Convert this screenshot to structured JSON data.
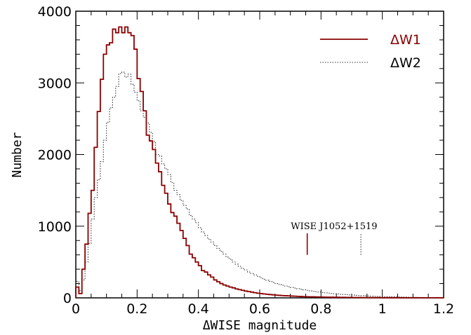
{
  "chart_data": {
    "type": "histogram",
    "xlabel": "ΔWISE magnitude",
    "ylabel": "Number",
    "xlim": [
      0,
      1.2
    ],
    "ylim": [
      0,
      4000
    ],
    "bin_width": 0.01,
    "x_ticks": [
      0,
      0.2,
      0.4,
      0.6,
      0.8,
      1,
      1.2
    ],
    "x_tick_labels": [
      "0",
      "0.2",
      "0.4",
      "0.6",
      "0.8",
      "1",
      "1.2"
    ],
    "y_ticks": [
      0,
      1000,
      2000,
      3000,
      4000
    ],
    "y_tick_labels": [
      "0",
      "1000",
      "2000",
      "3000",
      "4000"
    ],
    "legend_position": "top-right",
    "series": [
      {
        "name": "ΔW1",
        "color": "#8b0000",
        "style": "solid",
        "bin_start": 0.0,
        "values": [
          150,
          60,
          400,
          750,
          1180,
          1500,
          2100,
          2600,
          3050,
          3400,
          3530,
          3560,
          3750,
          3700,
          3780,
          3700,
          3780,
          3700,
          3660,
          3470,
          3060,
          2880,
          2610,
          2270,
          2190,
          2070,
          1880,
          1760,
          1570,
          1460,
          1310,
          1190,
          1140,
          1040,
          940,
          830,
          730,
          610,
          560,
          500,
          450,
          380,
          360,
          320,
          290,
          250,
          225,
          200,
          180,
          165,
          150,
          140,
          125,
          115,
          105,
          95,
          88,
          80,
          72,
          65,
          60,
          55,
          50,
          46,
          42,
          38,
          35,
          32,
          30,
          28,
          25,
          23,
          21,
          19,
          17,
          16,
          15,
          14,
          13,
          12,
          11,
          10,
          10,
          9,
          8,
          8,
          7,
          7,
          6,
          6,
          5,
          5,
          5,
          4,
          4,
          4,
          3,
          3,
          3,
          3,
          2,
          2,
          2,
          2,
          2,
          2,
          2,
          1,
          1,
          1,
          1,
          1,
          1,
          1,
          1,
          1,
          1,
          1,
          1,
          1
        ]
      },
      {
        "name": "ΔW2",
        "color": "#333333",
        "style": "dotted",
        "bin_start": 0.0,
        "values": [
          230,
          100,
          250,
          500,
          760,
          1100,
          1400,
          1650,
          1900,
          2200,
          2450,
          2650,
          2800,
          2950,
          3130,
          3150,
          3080,
          3120,
          2980,
          2870,
          2750,
          2610,
          2520,
          2440,
          2310,
          2180,
          2000,
          1980,
          1870,
          1800,
          1720,
          1610,
          1500,
          1440,
          1360,
          1290,
          1240,
          1150,
          1100,
          1050,
          980,
          920,
          870,
          820,
          780,
          730,
          690,
          650,
          610,
          570,
          540,
          500,
          470,
          440,
          410,
          390,
          360,
          340,
          320,
          300,
          280,
          260,
          245,
          230,
          215,
          200,
          188,
          176,
          165,
          155,
          145,
          136,
          128,
          120,
          112,
          105,
          98,
          92,
          86,
          81,
          76,
          71,
          66,
          62,
          58,
          54,
          50,
          47,
          44,
          41,
          38,
          35,
          33,
          30,
          28,
          26,
          24,
          22,
          20,
          19,
          17,
          16,
          15,
          14,
          13,
          12,
          11,
          10,
          9,
          8,
          8,
          7,
          6,
          6,
          5,
          5,
          4,
          4,
          3,
          3
        ]
      }
    ],
    "annotations": [
      {
        "text": "WISE J1052+1519",
        "w1_marker_x": 0.755,
        "w2_marker_x": 0.93,
        "marker_bottom": 600,
        "marker_top": 900
      }
    ]
  }
}
